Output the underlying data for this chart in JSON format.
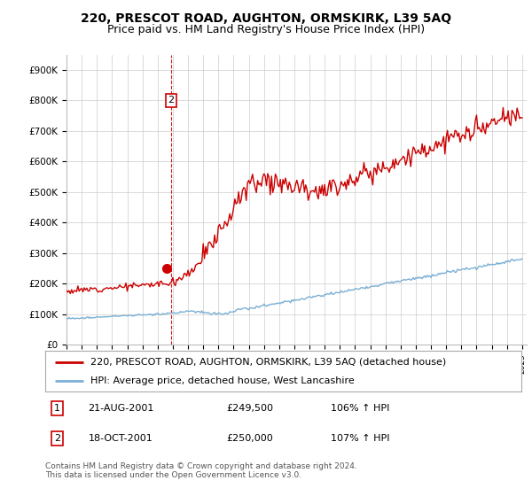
{
  "title": "220, PRESCOT ROAD, AUGHTON, ORMSKIRK, L39 5AQ",
  "subtitle": "Price paid vs. HM Land Registry's House Price Index (HPI)",
  "ylim": [
    0,
    950000
  ],
  "yticks": [
    0,
    100000,
    200000,
    300000,
    400000,
    500000,
    600000,
    700000,
    800000,
    900000
  ],
  "ytick_labels": [
    "£0",
    "£100K",
    "£200K",
    "£300K",
    "£400K",
    "£500K",
    "£600K",
    "£700K",
    "£800K",
    "£900K"
  ],
  "legend_label_red": "220, PRESCOT ROAD, AUGHTON, ORMSKIRK, L39 5AQ (detached house)",
  "legend_label_blue": "HPI: Average price, detached house, West Lancashire",
  "red_color": "#cc0000",
  "blue_color": "#7bafd4",
  "table_rows": [
    [
      "1",
      "21-AUG-2001",
      "£249,500",
      "106% ↑ HPI"
    ],
    [
      "2",
      "18-OCT-2001",
      "£250,000",
      "107% ↑ HPI"
    ]
  ],
  "footnote": "Contains HM Land Registry data © Crown copyright and database right 2024.\nThis data is licensed under the Open Government Licence v3.0.",
  "vline_x": 2001.88,
  "bg_color": "#ffffff",
  "plot_bg_color": "#ffffff",
  "grid_color": "#cccccc",
  "title_fontsize": 10,
  "subtitle_fontsize": 9,
  "tick_fontsize": 7.5,
  "legend_fontsize": 8,
  "table_fontsize": 8,
  "footnote_fontsize": 6.5
}
